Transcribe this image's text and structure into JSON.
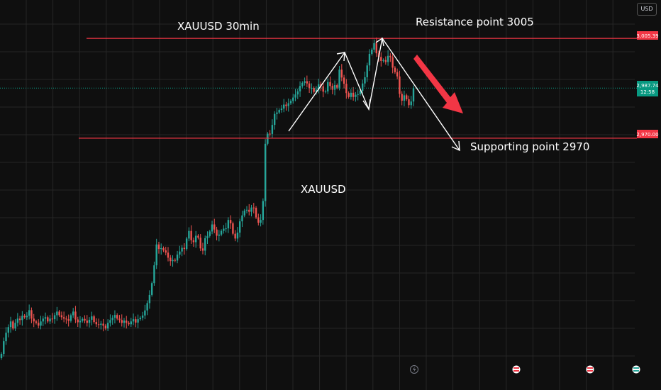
{
  "chart_data": {
    "type": "candlestick",
    "currency": "USD",
    "ylim": [
      2892,
      3019
    ],
    "grid": true,
    "colors": {
      "up": "#26a69a",
      "down": "#ef5350",
      "level_line": "#f23645",
      "price_badge": "#089981",
      "background": "#0f0f0f",
      "grid": "#262626"
    },
    "levels": [
      {
        "value": 3005.39,
        "label": "3,005.39"
      },
      {
        "value": 2970.0,
        "label": "2,970.00"
      }
    ],
    "current_price": {
      "value": 2987.74,
      "label": "2,987.74",
      "countdown": "12:58"
    },
    "annotations": {
      "title": "XAUUSD 30min",
      "resistance": "Resistance point 3005",
      "support": "Supporting point 2970",
      "symbol": "XAUUSD"
    },
    "candles": {
      "close": [
        2893.5,
        2898,
        2901,
        2903,
        2905,
        2902.5,
        2904.5,
        2906,
        2905.5,
        2907,
        2906.5,
        2907,
        2909,
        2906,
        2905,
        2904.5,
        2903.5,
        2905,
        2906,
        2906.5,
        2905,
        2906,
        2905.8,
        2907.2,
        2908.5,
        2907.2,
        2906.5,
        2906,
        2905.8,
        2905.2,
        2907.2,
        2908.5,
        2905.7,
        2904.7,
        2905.2,
        2905.9,
        2905.3,
        2904.5,
        2905.6,
        2906.8,
        2904.8,
        2904,
        2903.8,
        2904.2,
        2903.5,
        2902.5,
        2904.5,
        2905.5,
        2906.3,
        2907.3,
        2906,
        2905.5,
        2904.5,
        2905.3,
        2904.5,
        2904,
        2905,
        2905.8,
        2904.6,
        2905.8,
        2906.3,
        2907.1,
        2908.9,
        2911.5,
        2914.4,
        2918.6,
        2924.9,
        2932.3,
        2930.7,
        2931,
        2930.2,
        2929.4,
        2927.6,
        2926.4,
        2926.8,
        2926.6,
        2928.7,
        2929.8,
        2931.1,
        2930.7,
        2934.4,
        2937.1,
        2933.8,
        2933.1,
        2935.4,
        2934.7,
        2930.9,
        2930.1,
        2934.5,
        2935.3,
        2936.9,
        2939.4,
        2937.6,
        2935.4,
        2935.8,
        2937.1,
        2937.9,
        2938,
        2941,
        2939.8,
        2936.1,
        2934.4,
        2936.5,
        2940.5,
        2942.6,
        2944.3,
        2944.6,
        2943.9,
        2945.4,
        2945.3,
        2941.9,
        2940,
        2941,
        2947.7,
        2968,
        2971.6,
        2971.5,
        2974.7,
        2978.6,
        2979.1,
        2980,
        2980.5,
        2981.9,
        2981.4,
        2982.4,
        2983.2,
        2984.4,
        2985.5,
        2986.6,
        2988.5,
        2989.6,
        2990.2,
        2989.4,
        2987.7,
        2987.8,
        2986.4,
        2987.2,
        2989.1,
        2988.4,
        2986.5,
        2986.6,
        2989.9,
        2988.5,
        2987.2,
        2988.8,
        2987.9,
        2994.3,
        2991.5,
        2989.3,
        2986,
        2984.6,
        2986.1,
        2984.6,
        2985.4,
        2985.6,
        2986.8,
        2989.4,
        2991.6,
        2995.8,
        2999.9,
        3001.4,
        3003.7,
        3000.1,
        2998.8,
        2997.4,
        2997.7,
        2997,
        2999.2,
        2998.7,
        2995,
        2993.4,
        2991.9,
        2985.7,
        2983.3,
        2985.2,
        2983.8,
        2981.7,
        2983,
        2987.7
      ]
    }
  }
}
